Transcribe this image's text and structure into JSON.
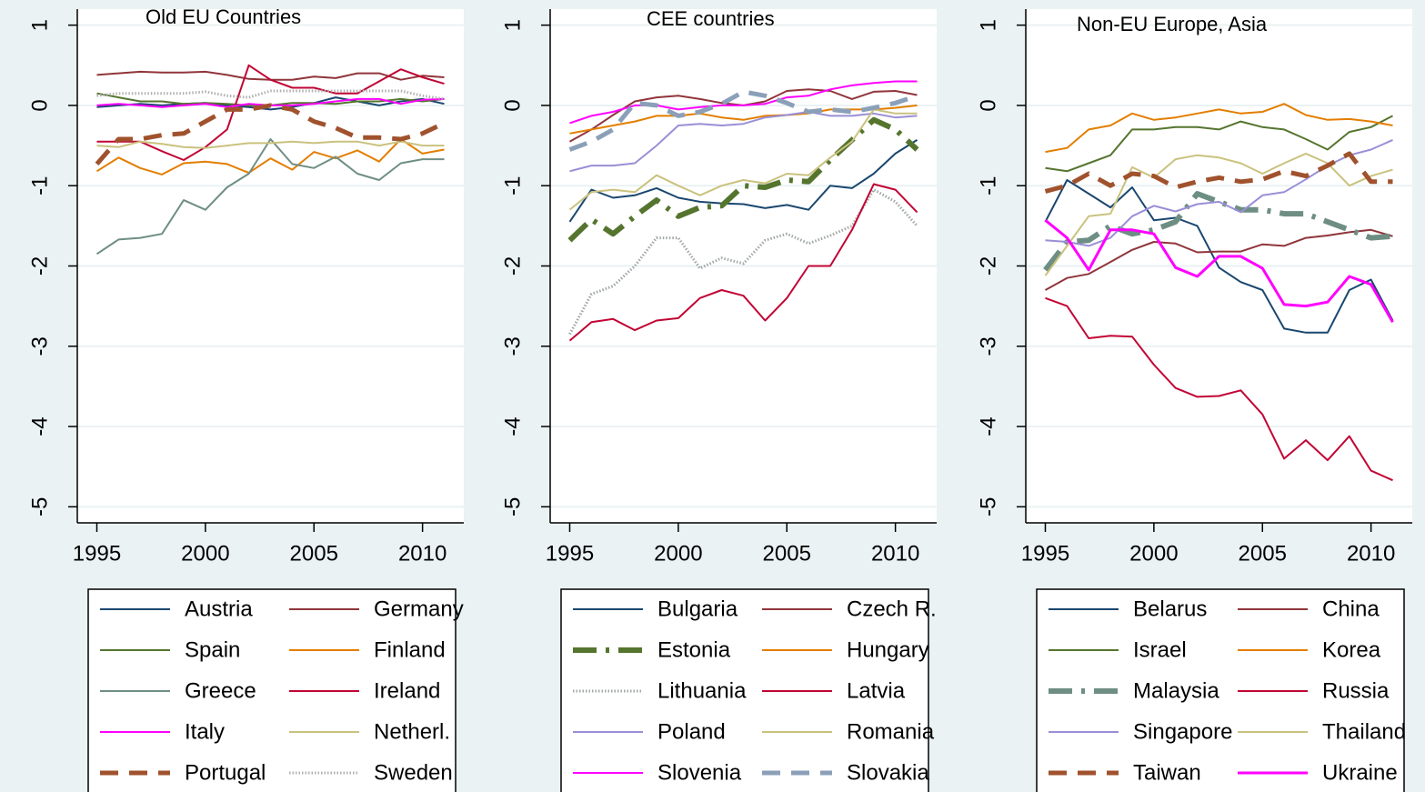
{
  "chart_data": [
    {
      "type": "line",
      "title": "Old EU Countries",
      "x": [
        1995,
        1996,
        1997,
        1998,
        1999,
        2000,
        2001,
        2002,
        2003,
        2004,
        2005,
        2006,
        2007,
        2008,
        2009,
        2010,
        2011
      ],
      "xlim": [
        1994.1,
        2011.9
      ],
      "xticks": [
        1995,
        2000,
        2005,
        2010
      ],
      "ylim": [
        -5.2,
        1.2
      ],
      "yticks": [
        1,
        0,
        -1,
        -2,
        -3,
        -4,
        -5
      ],
      "grid": true,
      "series": [
        {
          "name": "Austria",
          "color": "#1a476f",
          "style": "solid",
          "values": [
            -0.02,
            0.0,
            0.02,
            0.0,
            0.02,
            0.03,
            0.0,
            -0.02,
            -0.05,
            -0.02,
            0.03,
            0.1,
            0.05,
            0.0,
            0.05,
            0.08,
            0.02
          ]
        },
        {
          "name": "Germany",
          "color": "#90353b",
          "style": "solid",
          "values": [
            0.38,
            0.4,
            0.42,
            0.41,
            0.41,
            0.42,
            0.38,
            0.33,
            0.32,
            0.32,
            0.36,
            0.34,
            0.4,
            0.4,
            0.32,
            0.37,
            0.35
          ]
        },
        {
          "name": "Spain",
          "color": "#55752f",
          "style": "solid",
          "values": [
            0.15,
            0.1,
            0.05,
            0.05,
            0.02,
            0.03,
            0.02,
            0.0,
            0.0,
            0.03,
            0.03,
            0.02,
            0.05,
            0.05,
            0.08,
            0.05,
            0.08
          ]
        },
        {
          "name": "Finland",
          "color": "#e37e00",
          "style": "solid",
          "values": [
            -0.82,
            -0.65,
            -0.78,
            -0.86,
            -0.72,
            -0.7,
            -0.73,
            -0.84,
            -0.66,
            -0.8,
            -0.58,
            -0.66,
            -0.56,
            -0.7,
            -0.42,
            -0.6,
            -0.55
          ]
        },
        {
          "name": "Greece",
          "color": "#6e8e84",
          "style": "solid",
          "values": [
            -1.85,
            -1.67,
            -1.65,
            -1.6,
            -1.18,
            -1.3,
            -1.02,
            -0.85,
            -0.42,
            -0.73,
            -0.78,
            -0.64,
            -0.85,
            -0.93,
            -0.72,
            -0.67,
            -0.67
          ]
        },
        {
          "name": "Ireland",
          "color": "#c10534",
          "style": "solid",
          "values": [
            -0.45,
            -0.45,
            -0.45,
            -0.57,
            -0.68,
            -0.52,
            -0.3,
            0.5,
            0.32,
            0.22,
            0.22,
            0.15,
            0.15,
            0.3,
            0.45,
            0.35,
            0.27
          ]
        },
        {
          "name": "Italy",
          "color": "#ff00ff",
          "style": "solid",
          "values": [
            0.0,
            0.02,
            0.0,
            -0.02,
            0.0,
            0.02,
            -0.02,
            0.02,
            0.0,
            0.0,
            0.02,
            0.05,
            0.08,
            0.08,
            0.02,
            0.07,
            0.08
          ]
        },
        {
          "name": "Netherl.",
          "color": "#cac27e",
          "style": "solid",
          "values": [
            -0.5,
            -0.52,
            -0.45,
            -0.48,
            -0.52,
            -0.53,
            -0.5,
            -0.47,
            -0.47,
            -0.45,
            -0.47,
            -0.45,
            -0.45,
            -0.5,
            -0.45,
            -0.5,
            -0.5
          ]
        },
        {
          "name": "Portugal",
          "color": "#a0522d",
          "style": "dash",
          "values": [
            -0.73,
            -0.42,
            -0.42,
            -0.37,
            -0.35,
            -0.2,
            -0.05,
            -0.05,
            0.0,
            -0.05,
            -0.2,
            -0.28,
            -0.4,
            -0.4,
            -0.42,
            -0.35,
            -0.22
          ]
        },
        {
          "name": "Sweden",
          "color": "#b0b0b0",
          "style": "dot",
          "values": [
            0.12,
            0.15,
            0.15,
            0.15,
            0.15,
            0.17,
            0.12,
            0.1,
            0.18,
            0.18,
            0.18,
            0.18,
            0.18,
            0.18,
            0.18,
            0.12,
            0.08
          ]
        }
      ]
    },
    {
      "type": "line",
      "title": "CEE countries",
      "x": [
        1995,
        1996,
        1997,
        1998,
        1999,
        2000,
        2001,
        2002,
        2003,
        2004,
        2005,
        2006,
        2007,
        2008,
        2009,
        2010,
        2011
      ],
      "xlim": [
        1994.1,
        2011.9
      ],
      "xticks": [
        1995,
        2000,
        2005,
        2010
      ],
      "ylim": [
        -5.2,
        1.2
      ],
      "yticks": [
        1,
        0,
        -1,
        -2,
        -3,
        -4,
        -5
      ],
      "grid": true,
      "series": [
        {
          "name": "Bulgaria",
          "color": "#1a476f",
          "style": "solid",
          "values": [
            -1.45,
            -1.05,
            -1.15,
            -1.12,
            -1.03,
            -1.15,
            -1.2,
            -1.22,
            -1.23,
            -1.28,
            -1.24,
            -1.3,
            -1.0,
            -1.03,
            -0.85,
            -0.6,
            -0.43
          ]
        },
        {
          "name": "Czech R.",
          "color": "#90353b",
          "style": "solid",
          "values": [
            -0.45,
            -0.3,
            -0.12,
            0.05,
            0.1,
            0.12,
            0.08,
            0.03,
            0.0,
            0.05,
            0.18,
            0.2,
            0.18,
            0.08,
            0.17,
            0.18,
            0.13
          ]
        },
        {
          "name": "Estonia",
          "color": "#55752f",
          "style": "dash-dot",
          "values": [
            -1.68,
            -1.42,
            -1.6,
            -1.38,
            -1.18,
            -1.38,
            -1.27,
            -1.25,
            -1.0,
            -1.02,
            -0.93,
            -0.95,
            -0.68,
            -0.43,
            -0.18,
            -0.3,
            -0.55
          ]
        },
        {
          "name": "Hungary",
          "color": "#e37e00",
          "style": "solid",
          "values": [
            -0.35,
            -0.3,
            -0.25,
            -0.2,
            -0.13,
            -0.13,
            -0.1,
            -0.15,
            -0.18,
            -0.13,
            -0.12,
            -0.1,
            -0.05,
            -0.05,
            -0.05,
            -0.03,
            0.0
          ]
        },
        {
          "name": "Lithuania",
          "color": "#a0a8a4",
          "style": "dot",
          "values": [
            -2.85,
            -2.35,
            -2.25,
            -2.0,
            -1.65,
            -1.65,
            -2.03,
            -1.9,
            -1.97,
            -1.68,
            -1.6,
            -1.72,
            -1.62,
            -1.5,
            -1.05,
            -1.2,
            -1.5
          ]
        },
        {
          "name": "Latvia",
          "color": "#c10534",
          "style": "solid",
          "values": [
            -2.93,
            -2.7,
            -2.66,
            -2.8,
            -2.68,
            -2.65,
            -2.4,
            -2.3,
            -2.37,
            -2.68,
            -2.4,
            -2.0,
            -2.0,
            -1.55,
            -0.98,
            -1.05,
            -1.33
          ]
        },
        {
          "name": "Poland",
          "color": "#9a8fd6",
          "style": "solid",
          "values": [
            -0.82,
            -0.75,
            -0.75,
            -0.72,
            -0.5,
            -0.25,
            -0.23,
            -0.25,
            -0.23,
            -0.15,
            -0.12,
            -0.08,
            -0.13,
            -0.13,
            -0.1,
            -0.15,
            -0.13
          ]
        },
        {
          "name": "Romania",
          "color": "#cac27e",
          "style": "solid",
          "values": [
            -1.3,
            -1.08,
            -1.05,
            -1.08,
            -0.87,
            -1.0,
            -1.12,
            -1.0,
            -0.93,
            -0.97,
            -0.85,
            -0.87,
            -0.65,
            -0.45,
            -0.05,
            -0.1,
            -0.1
          ]
        },
        {
          "name": "Slovenia",
          "color": "#ff00ff",
          "style": "solid",
          "values": [
            -0.22,
            -0.13,
            -0.08,
            0.0,
            0.0,
            -0.05,
            -0.02,
            0.0,
            0.0,
            0.02,
            0.1,
            0.12,
            0.2,
            0.25,
            0.28,
            0.3,
            0.3
          ]
        },
        {
          "name": "Slovakia",
          "color": "#8ba0b8",
          "style": "dash",
          "values": [
            -0.55,
            -0.45,
            -0.3,
            0.03,
            0.0,
            -0.13,
            -0.08,
            0.02,
            0.17,
            0.12,
            0.03,
            -0.08,
            -0.05,
            -0.08,
            -0.03,
            0.03,
            0.12
          ]
        }
      ]
    },
    {
      "type": "line",
      "title": "Non-EU Europe, Asia",
      "x": [
        1995,
        1996,
        1997,
        1998,
        1999,
        2000,
        2001,
        2002,
        2003,
        2004,
        2005,
        2006,
        2007,
        2008,
        2009,
        2010,
        2011
      ],
      "xlim": [
        1994.1,
        2011.9
      ],
      "xticks": [
        1995,
        2000,
        2005,
        2010
      ],
      "ylim": [
        -5.2,
        1.2
      ],
      "yticks": [
        1,
        0,
        -1,
        -2,
        -3,
        -4,
        -5
      ],
      "grid": true,
      "series": [
        {
          "name": "Belarus",
          "color": "#1a476f",
          "style": "solid",
          "values": [
            -1.45,
            -0.93,
            -1.1,
            -1.27,
            -1.02,
            -1.43,
            -1.4,
            -1.5,
            -2.02,
            -2.2,
            -2.3,
            -2.78,
            -2.83,
            -2.83,
            -2.3,
            -2.17,
            -2.68
          ]
        },
        {
          "name": "China",
          "color": "#90353b",
          "style": "solid",
          "values": [
            -2.3,
            -2.15,
            -2.1,
            -1.95,
            -1.8,
            -1.7,
            -1.72,
            -1.83,
            -1.82,
            -1.82,
            -1.73,
            -1.75,
            -1.65,
            -1.62,
            -1.58,
            -1.55,
            -1.63
          ]
        },
        {
          "name": "Israel",
          "color": "#55752f",
          "style": "solid",
          "values": [
            -0.78,
            -0.82,
            -0.72,
            -0.62,
            -0.3,
            -0.3,
            -0.27,
            -0.27,
            -0.3,
            -0.2,
            -0.27,
            -0.3,
            -0.42,
            -0.55,
            -0.33,
            -0.27,
            -0.13
          ]
        },
        {
          "name": "Korea",
          "color": "#e37e00",
          "style": "solid",
          "values": [
            -0.58,
            -0.53,
            -0.3,
            -0.25,
            -0.1,
            -0.18,
            -0.15,
            -0.1,
            -0.05,
            -0.1,
            -0.08,
            0.02,
            -0.12,
            -0.18,
            -0.17,
            -0.2,
            -0.25
          ]
        },
        {
          "name": "Malaysia",
          "color": "#6e8e84",
          "style": "dash-dot",
          "values": [
            -2.05,
            -1.7,
            -1.68,
            -1.5,
            -1.6,
            -1.55,
            -1.45,
            -1.1,
            -1.2,
            -1.3,
            -1.3,
            -1.35,
            -1.35,
            -1.45,
            -1.55,
            -1.65,
            -1.63
          ]
        },
        {
          "name": "Russia",
          "color": "#c10534",
          "style": "solid",
          "values": [
            -2.4,
            -2.5,
            -2.9,
            -2.87,
            -2.88,
            -3.23,
            -3.52,
            -3.63,
            -3.62,
            -3.55,
            -3.85,
            -4.4,
            -4.17,
            -4.42,
            -4.12,
            -4.55,
            -4.67
          ]
        },
        {
          "name": "Singapore",
          "color": "#9a8fd6",
          "style": "solid",
          "values": [
            -1.68,
            -1.7,
            -1.75,
            -1.65,
            -1.38,
            -1.25,
            -1.32,
            -1.23,
            -1.2,
            -1.33,
            -1.12,
            -1.08,
            -0.92,
            -0.75,
            -0.62,
            -0.55,
            -0.43
          ]
        },
        {
          "name": "Thailand",
          "color": "#cac27e",
          "style": "solid",
          "values": [
            -2.12,
            -1.75,
            -1.38,
            -1.35,
            -0.77,
            -0.9,
            -0.67,
            -0.62,
            -0.65,
            -0.72,
            -0.85,
            -0.72,
            -0.6,
            -0.72,
            -1.0,
            -0.88,
            -0.8
          ]
        },
        {
          "name": "Taiwan",
          "color": "#a0522d",
          "style": "dash",
          "values": [
            -1.07,
            -1.0,
            -0.85,
            -1.0,
            -0.85,
            -0.88,
            -1.02,
            -0.95,
            -0.9,
            -0.95,
            -0.92,
            -0.82,
            -0.88,
            -0.75,
            -0.6,
            -0.95,
            -0.95
          ]
        },
        {
          "name": "Ukraine",
          "color": "#ff00ff",
          "style": "solid-bold",
          "values": [
            -1.43,
            -1.65,
            -2.05,
            -1.55,
            -1.55,
            -1.6,
            -2.02,
            -2.13,
            -1.88,
            -1.88,
            -2.03,
            -2.48,
            -2.5,
            -2.45,
            -2.13,
            -2.23,
            -2.7
          ]
        }
      ]
    }
  ]
}
